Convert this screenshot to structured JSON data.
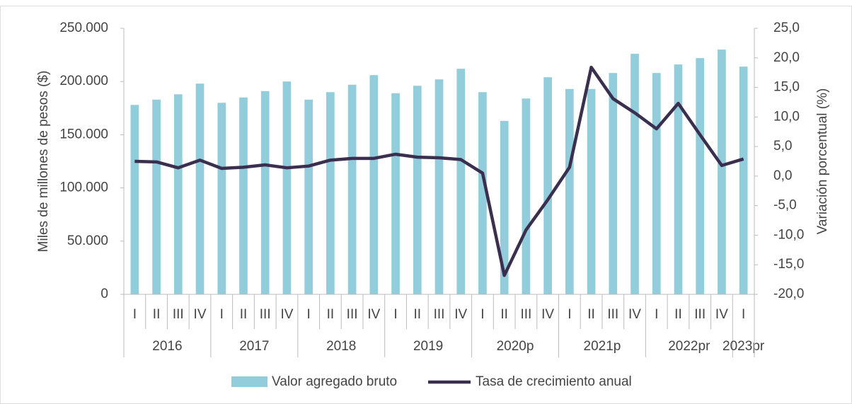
{
  "chart_data": {
    "type": "bar-line",
    "categories": [
      "I",
      "II",
      "III",
      "IV",
      "I",
      "II",
      "III",
      "IV",
      "I",
      "II",
      "III",
      "IV",
      "I",
      "II",
      "III",
      "IV",
      "I",
      "II",
      "III",
      "IV",
      "I",
      "II",
      "III",
      "IV",
      "I",
      "II",
      "III",
      "IV",
      "I"
    ],
    "group_labels": [
      "2016",
      "2017",
      "2018",
      "2019",
      "2020p",
      "2021p",
      "2022pr",
      "2023pr"
    ],
    "ylabel": "Miles de millones de pesos ($)",
    "y2label": "Variación porcentual (%)",
    "series": [
      {
        "name": "Valor agregado bruto",
        "type": "bar",
        "color": "#92cddc",
        "axis": "y",
        "values": [
          178000,
          183000,
          188000,
          198000,
          180000,
          185000,
          191000,
          200000,
          183000,
          190000,
          197000,
          206000,
          189000,
          196000,
          202000,
          212000,
          190000,
          163000,
          184000,
          204000,
          193000,
          193000,
          208000,
          226000,
          208000,
          216000,
          222000,
          230000,
          214000
        ]
      },
      {
        "name": "Tasa de crecimiento anual",
        "type": "line",
        "color": "#3b2f4f",
        "axis": "y2",
        "values": [
          2.5,
          2.4,
          1.4,
          2.7,
          1.3,
          1.5,
          1.9,
          1.4,
          1.7,
          2.7,
          3.0,
          3.0,
          3.7,
          3.2,
          3.1,
          2.8,
          0.5,
          -16.8,
          -9.1,
          -4.0,
          1.5,
          18.4,
          13.1,
          10.7,
          8.0,
          12.3,
          7.0,
          1.8,
          2.9
        ]
      }
    ],
    "ylim": [
      0,
      250000
    ],
    "yticks": [
      0,
      {
        "value": 50000,
        "label": "50.000"
      },
      {
        "value": 100000,
        "label": "100.000"
      },
      {
        "value": 150000,
        "label": "150.000"
      },
      {
        "value": 200000,
        "label": "200.000"
      },
      {
        "value": 250000,
        "label": "250.000"
      }
    ],
    "y2lim": [
      -20,
      25
    ],
    "y2ticks": [
      {
        "value": -20,
        "label": "-20,0"
      },
      {
        "value": -15,
        "label": "-15,0"
      },
      {
        "value": -10,
        "label": "-10,0"
      },
      {
        "value": -5,
        "label": "-5,0"
      },
      {
        "value": 0,
        "label": "0,0"
      },
      {
        "value": 5,
        "label": "5,0"
      },
      {
        "value": 10,
        "label": "10,0"
      },
      {
        "value": 15,
        "label": "15,0"
      },
      {
        "value": 20,
        "label": "20,0"
      },
      {
        "value": 25,
        "label": "25,0"
      }
    ],
    "legend": "bottom"
  }
}
